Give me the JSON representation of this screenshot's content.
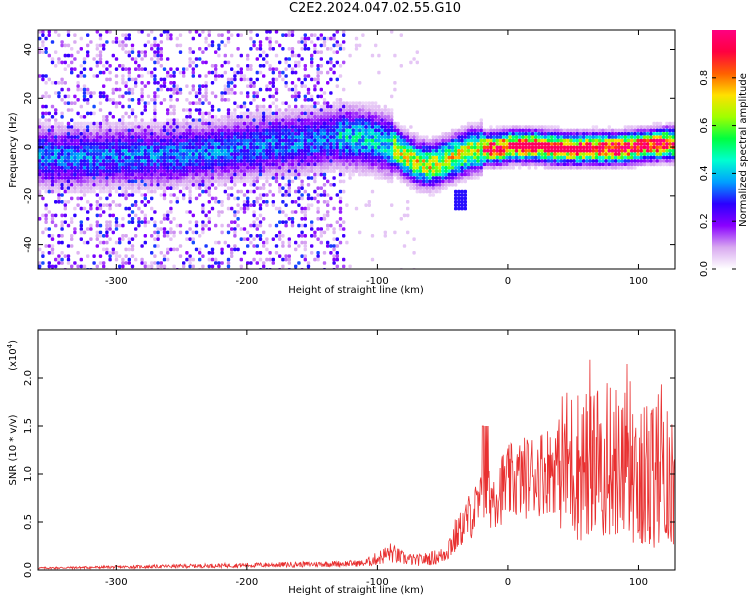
{
  "title": "C2E2.2024.047.02.55.G10",
  "chart_data": [
    {
      "type": "heatmap",
      "xlabel": "Height of straight line (km)",
      "ylabel": "Frequency (Hz)",
      "xlim": [
        -360,
        128
      ],
      "ylim": [
        -50,
        48
      ],
      "xticks": [
        -300,
        -200,
        -100,
        0,
        100
      ],
      "yticks": [
        -40,
        -20,
        0,
        20,
        40
      ],
      "grid": false,
      "colorbar": {
        "label": "Normalized spectral amplitude",
        "range": [
          0,
          1
        ],
        "ticks": [
          "0.0",
          "0.2",
          "0.4",
          "0.6",
          "0.8"
        ],
        "colormap": [
          "#ffffff",
          "#d8a8f0",
          "#8a00ff",
          "#2a00ff",
          "#00a0ff",
          "#00ffd0",
          "#00ff40",
          "#a0ff00",
          "#ffe000",
          "#ff6000",
          "#ff0040",
          "#ff0080"
        ]
      },
      "ridge": {
        "x": [
          -360,
          -330,
          -300,
          -270,
          -240,
          -210,
          -180,
          -150,
          -130,
          -110,
          -100,
          -90,
          -80,
          -70,
          -60,
          -50,
          -40,
          -30,
          -20,
          -10,
          0,
          20,
          40,
          60,
          80,
          100,
          120,
          128
        ],
        "frequency": [
          -3,
          -4,
          -3,
          -3,
          -2,
          0,
          2,
          3,
          5,
          4,
          3,
          1,
          -3,
          -6,
          -7,
          -5,
          -3,
          -1,
          0,
          0,
          1,
          1,
          0,
          0,
          0,
          1,
          2,
          2
        ]
      },
      "feature": {
        "x": [
          -40,
          -35
        ],
        "frequency": [
          -18,
          -24
        ]
      }
    },
    {
      "type": "line",
      "xlabel": "Height of straight line (km)",
      "ylabel": "SNR (10 * v/v)",
      "yscale_label": "(x10",
      "yscale_exponent": "4",
      "xlim": [
        -360,
        128
      ],
      "ylim": [
        0,
        2.5
      ],
      "xticks": [
        -300,
        -200,
        -100,
        0,
        100
      ],
      "yticks": [
        "0.0",
        "0.5",
        "1.0",
        "1.5",
        "2.0"
      ],
      "grid": false,
      "series_color": "#e83030",
      "x": [
        -360,
        -300,
        -250,
        -200,
        -150,
        -110,
        -100,
        -90,
        -80,
        -70,
        -60,
        -50,
        -40,
        -30,
        -20,
        -10,
        0,
        10,
        20,
        30,
        40,
        50,
        60,
        70,
        80,
        90,
        100,
        110,
        120,
        128
      ],
      "y": [
        0.02,
        0.03,
        0.04,
        0.05,
        0.06,
        0.07,
        0.12,
        0.18,
        0.12,
        0.1,
        0.12,
        0.15,
        0.35,
        0.55,
        0.7,
        0.8,
        0.9,
        0.95,
        1.0,
        1.05,
        1.1,
        1.1,
        1.1,
        1.15,
        1.1,
        1.1,
        1.05,
        1.0,
        0.95,
        1.0
      ]
    }
  ]
}
